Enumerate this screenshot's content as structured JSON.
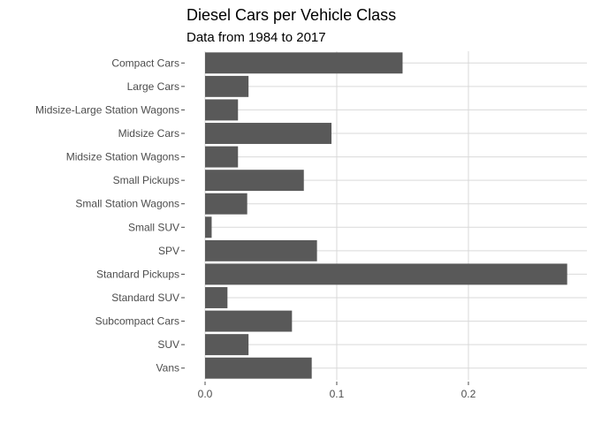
{
  "chart_data": {
    "type": "bar",
    "orientation": "horizontal",
    "title": "Diesel Cars per Vehicle Class",
    "subtitle": "Data from 1984 to 2017",
    "xlabel": "",
    "ylabel": "",
    "categories": [
      "Compact Cars",
      "Large Cars",
      "Midsize-Large Station Wagons",
      "Midsize Cars",
      "Midsize Station Wagons",
      "Small Pickups",
      "Small Station Wagons",
      "Small SUV",
      "SPV",
      "Standard Pickups",
      "Standard SUV",
      "Subcompact Cars",
      "SUV",
      "Vans"
    ],
    "values": [
      0.15,
      0.033,
      0.025,
      0.096,
      0.025,
      0.075,
      0.032,
      0.005,
      0.085,
      0.275,
      0.017,
      0.066,
      0.033,
      0.081
    ],
    "xlim": [
      0,
      0.29
    ],
    "xticks": [
      0.0,
      0.1,
      0.2
    ],
    "xtick_labels": [
      "0.0",
      "0.1",
      "0.2"
    ],
    "bar_color": "#595959",
    "grid": true
  }
}
